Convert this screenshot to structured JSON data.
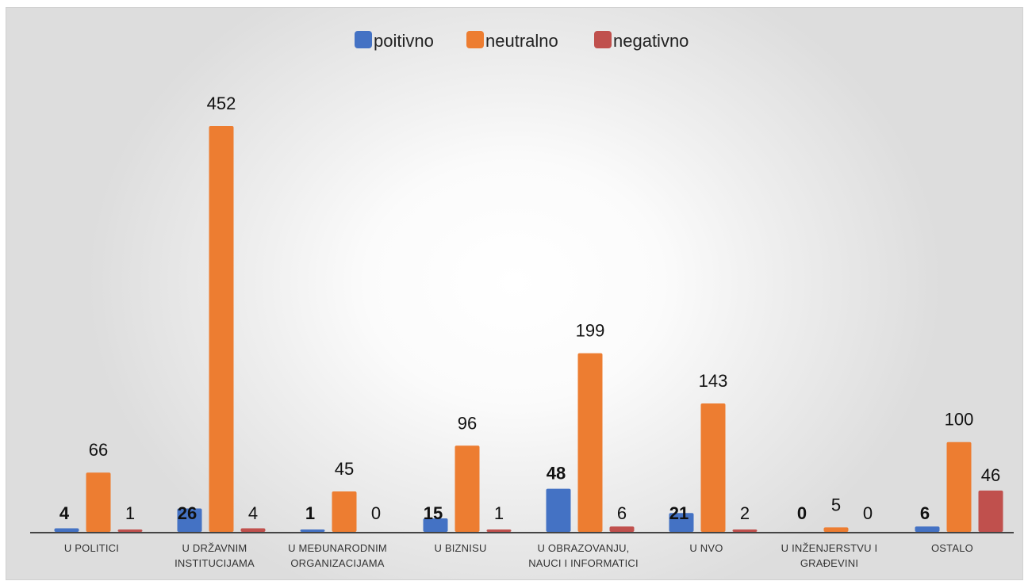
{
  "chart_data": {
    "type": "bar",
    "categories": [
      [
        "U POLITICI"
      ],
      [
        "U DRŽAVNIM",
        "INSTITUCIJAMA"
      ],
      [
        "U MEĐUNARODNIM",
        "ORGANIZACIJAMA"
      ],
      [
        "U BIZNISU"
      ],
      [
        "U OBRAZOVANJU,",
        "NAUCI I INFORMATICI"
      ],
      [
        "U NVO"
      ],
      [
        "U INŽENJERSTVU I",
        "GRAĐEVINI"
      ],
      [
        "OSTALO"
      ]
    ],
    "series": [
      {
        "name": "poitivno",
        "color": "#4472C4",
        "values": [
          4,
          26,
          1,
          15,
          48,
          21,
          0,
          6
        ]
      },
      {
        "name": "neutralno",
        "color": "#ED7D31",
        "values": [
          66,
          452,
          45,
          96,
          199,
          143,
          5,
          100
        ]
      },
      {
        "name": "negativno",
        "color": "#C0504D",
        "values": [
          1,
          4,
          0,
          1,
          6,
          2,
          0,
          46
        ]
      }
    ],
    "legend_position": "top",
    "grid": false,
    "ylim": [
      0,
      452
    ]
  }
}
